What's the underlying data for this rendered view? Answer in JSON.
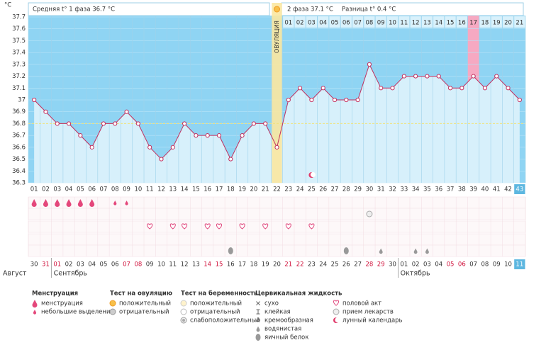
{
  "chart_data": {
    "type": "line",
    "y_unit": "°C",
    "phase1": "Средняя t° 1 фаза 36.7 °C",
    "phase2": "2 фаза 37.1 °C",
    "difference": "Разница t° 0.4 °C",
    "ovulation_label": "ОВУЛЯЦИЯ",
    "ovulation_day": "22",
    "coverline": 36.8,
    "highlight_day": "39",
    "today": "43",
    "color": "#c2305f",
    "categories": [
      "01",
      "02",
      "03",
      "04",
      "05",
      "06",
      "07",
      "08",
      "09",
      "10",
      "11",
      "12",
      "13",
      "14",
      "15",
      "16",
      "17",
      "18",
      "19",
      "20",
      "21",
      "22",
      "23",
      "24",
      "25",
      "26",
      "27",
      "28",
      "29",
      "30",
      "31",
      "32",
      "33",
      "34",
      "35",
      "36",
      "37",
      "38",
      "39",
      "40",
      "41",
      "42",
      "43"
    ],
    "values": [
      37.0,
      36.9,
      36.8,
      36.8,
      36.7,
      36.6,
      36.8,
      36.8,
      36.9,
      36.8,
      36.6,
      36.5,
      36.6,
      36.8,
      36.7,
      36.7,
      36.7,
      36.5,
      36.7,
      36.8,
      36.8,
      36.6,
      37.0,
      37.1,
      37.0,
      37.1,
      37.0,
      37.0,
      37.0,
      37.3,
      37.1,
      37.1,
      37.2,
      37.2,
      37.2,
      37.2,
      37.1,
      37.1,
      37.2,
      37.1,
      37.2,
      37.1,
      37.0
    ],
    "phase2_start": "23",
    "phase2_days": [
      "01",
      "02",
      "03",
      "04",
      "05",
      "06",
      "07",
      "08",
      "09",
      "10",
      "11",
      "12",
      "13",
      "14",
      "15",
      "16",
      "17",
      "18",
      "19",
      "20",
      "21"
    ],
    "ylim": [
      36.3,
      37.7
    ],
    "yticks": [
      36.3,
      36.4,
      36.5,
      36.6,
      36.7,
      36.8,
      36.9,
      37,
      37.1,
      37.2,
      37.3,
      37.4,
      37.5,
      37.6,
      37.7
    ],
    "months": [
      {
        "name": "Август",
        "dates": [
          "30",
          "31"
        ],
        "weekend": [
          "31"
        ]
      },
      {
        "name": "Сентябрь",
        "dates": [
          "01",
          "02",
          "03",
          "04",
          "05",
          "06",
          "07",
          "08",
          "09",
          "10",
          "11",
          "12",
          "13",
          "14",
          "15",
          "16",
          "17",
          "18",
          "19",
          "20",
          "21",
          "22",
          "23",
          "24",
          "25",
          "26",
          "27",
          "28",
          "29",
          "30"
        ],
        "weekend": [
          "01",
          "07",
          "08",
          "14",
          "15",
          "21",
          "22",
          "28",
          "29"
        ]
      },
      {
        "name": "Октябрь",
        "dates": [
          "01",
          "02",
          "03",
          "04",
          "05",
          "06",
          "07",
          "08",
          "09",
          "10",
          "11"
        ],
        "weekend": [
          "05",
          "06"
        ]
      }
    ],
    "legend": [
      {
        "title": "Менструация",
        "items": [
          {
            "label": "менструация",
            "days": [
              "01",
              "02",
              "03",
              "04",
              "05",
              "06"
            ]
          },
          {
            "label": "небольшие выделения",
            "days": [
              "08",
              "09"
            ]
          }
        ]
      },
      {
        "title": "Тест на овуляцию",
        "items": [
          {
            "label": "положительный",
            "days": []
          },
          {
            "label": "отрицательный",
            "days": []
          }
        ]
      },
      {
        "title": "Тест на беременность",
        "items": [
          {
            "label": "положительный",
            "days": []
          },
          {
            "label": "отрицательный",
            "days": []
          },
          {
            "label": "слабоположительный",
            "days": []
          }
        ]
      },
      {
        "title": "Цервикальная жидкость",
        "items": [
          {
            "label": "сухо",
            "days": []
          },
          {
            "label": "клейкая",
            "days": []
          },
          {
            "label": "кремообразная",
            "days": []
          },
          {
            "label": "водянистая",
            "days": [
              "31",
              "34",
              "35"
            ]
          },
          {
            "label": "яичный белок",
            "days": [
              "18",
              "28"
            ]
          }
        ]
      },
      {
        "items": [
          {
            "label": "половой акт",
            "days": [
              "11",
              "13",
              "14",
              "16",
              "17",
              "19",
              "21",
              "23",
              "25"
            ]
          },
          {
            "label": "прием лекарств",
            "days": [
              "30"
            ]
          },
          {
            "label": "лунный календарь",
            "days": [
              "25"
            ]
          }
        ]
      }
    ]
  }
}
